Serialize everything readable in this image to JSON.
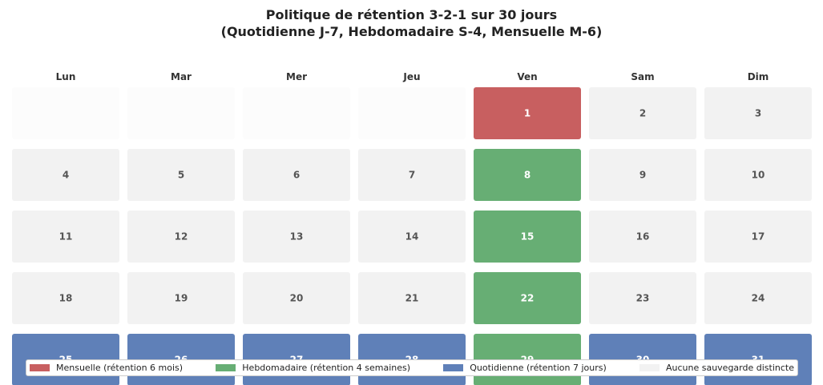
{
  "chart_data": {
    "type": "heatmap",
    "title": [
      "Politique de rétention 3-2-1 sur 30 jours",
      "(Quotidienne J-7, Hebdomadaire S-4, Mensuelle M-6)"
    ],
    "weekdays": [
      "Lun",
      "Mar",
      "Mer",
      "Jeu",
      "Ven",
      "Sam",
      "Dim"
    ],
    "weeks": [
      [
        null,
        null,
        null,
        null,
        1,
        2,
        3
      ],
      [
        4,
        5,
        6,
        7,
        8,
        9,
        10
      ],
      [
        11,
        12,
        13,
        14,
        15,
        16,
        17
      ],
      [
        18,
        19,
        20,
        21,
        22,
        23,
        24
      ],
      [
        25,
        26,
        27,
        28,
        29,
        30,
        31
      ]
    ],
    "categories_by_week": [
      [
        "empty",
        "empty",
        "empty",
        "empty",
        "monthly",
        "none",
        "none"
      ],
      [
        "none",
        "none",
        "none",
        "none",
        "weekly",
        "none",
        "none"
      ],
      [
        "none",
        "none",
        "none",
        "none",
        "weekly",
        "none",
        "none"
      ],
      [
        "none",
        "none",
        "none",
        "none",
        "weekly",
        "none",
        "none"
      ],
      [
        "daily",
        "daily",
        "daily",
        "daily",
        "weekly",
        "daily",
        "daily"
      ]
    ],
    "legend": [
      {
        "key": "monthly",
        "label": "Mensuelle (rétention 6 mois)",
        "color": "#c85f60"
      },
      {
        "key": "weekly",
        "label": "Hebdomadaire (rétention 4 semaines)",
        "color": "#67ae74"
      },
      {
        "key": "daily",
        "label": "Quotidienne (rétention 7 jours)",
        "color": "#5f80b8"
      },
      {
        "key": "none",
        "label": "Aucune sauvegarde distincte",
        "color": "#f2f2f2"
      }
    ],
    "empty_color": "#fcfcfc",
    "legend_position": "bottom"
  }
}
